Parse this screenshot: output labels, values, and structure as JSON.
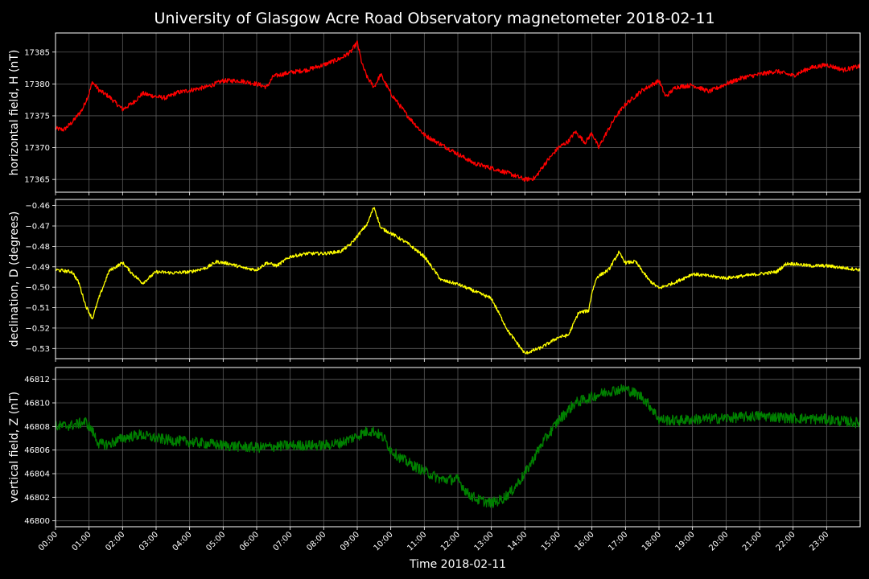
{
  "chart_data": {
    "type": "line",
    "title": "University of Glasgow Acre Road Observatory magnetometer 2018-02-11",
    "xlabel": "Time 2018-02-11",
    "x_tick_labels": [
      "00:00",
      "01:00",
      "02:00",
      "03:00",
      "04:00",
      "05:00",
      "06:00",
      "07:00",
      "08:00",
      "09:00",
      "10:00",
      "11:00",
      "12:00",
      "13:00",
      "14:00",
      "15:00",
      "16:00",
      "17:00",
      "18:00",
      "19:00",
      "20:00",
      "21:00",
      "22:00",
      "23:00"
    ],
    "xlim_hours": [
      0,
      24
    ],
    "grid": true,
    "panels": [
      {
        "ylabel": "horizontal field, H (nT)",
        "color": "#ff0000",
        "ylim": [
          17363,
          17388
        ],
        "yticks": [
          17365,
          17370,
          17375,
          17380,
          17385
        ],
        "ytick_labels": [
          "17365",
          "17370",
          "17375",
          "17380",
          "17385"
        ],
        "noise": 0.35,
        "x": [
          0,
          0.25,
          0.5,
          0.8,
          1.0,
          1.1,
          1.3,
          1.6,
          2.0,
          2.3,
          2.6,
          3.0,
          3.3,
          3.6,
          4.0,
          4.5,
          5.0,
          5.5,
          6.0,
          6.3,
          6.5,
          7.0,
          7.5,
          8.0,
          8.5,
          8.8,
          9.0,
          9.15,
          9.3,
          9.5,
          9.7,
          10.0,
          10.5,
          11.0,
          11.5,
          12.0,
          12.5,
          13.0,
          13.5,
          14.0,
          14.3,
          14.6,
          15.0,
          15.3,
          15.5,
          15.8,
          16.0,
          16.2,
          16.4,
          16.7,
          17.0,
          17.5,
          18.0,
          18.2,
          18.5,
          19.0,
          19.5,
          20.0,
          20.5,
          21.0,
          21.5,
          22.0,
          22.5,
          23.0,
          23.5,
          24.0
        ],
        "values": [
          17373,
          17372.8,
          17374,
          17376,
          17378.5,
          17380.3,
          17379,
          17378,
          17376,
          17377,
          17378.5,
          17378,
          17377.8,
          17378.6,
          17379,
          17379.5,
          17380.5,
          17380.5,
          17380,
          17379.5,
          17381.2,
          17381.8,
          17382.2,
          17383,
          17384,
          17385,
          17386.5,
          17383,
          17381,
          17379.5,
          17381.5,
          17378.5,
          17375,
          17372,
          17370.5,
          17369,
          17367.5,
          17366.8,
          17366,
          17365,
          17365.2,
          17367.5,
          17370,
          17371,
          17372.5,
          17370.8,
          17372.3,
          17370,
          17372,
          17374.8,
          17376.8,
          17379,
          17380.5,
          17378,
          17379.5,
          17379.8,
          17378.8,
          17380,
          17381,
          17381.5,
          17382,
          17381.3,
          17382.5,
          17383,
          17382.2,
          17382.8
        ]
      },
      {
        "ylabel": "declination, D (degrees)",
        "color": "#ffff00",
        "ylim": [
          -0.535,
          -0.457
        ],
        "yticks": [
          -0.53,
          -0.52,
          -0.51,
          -0.5,
          -0.49,
          -0.48,
          -0.47,
          -0.46
        ],
        "ytick_labels": [
          "−0.53",
          "−0.52",
          "−0.51",
          "−0.50",
          "−0.49",
          "−0.48",
          "−0.47",
          "−0.46"
        ],
        "noise": 0.0008,
        "x": [
          0,
          0.5,
          0.7,
          0.9,
          1.1,
          1.3,
          1.6,
          2.0,
          2.3,
          2.6,
          3.0,
          3.5,
          4.0,
          4.5,
          4.8,
          5.2,
          5.6,
          6.0,
          6.3,
          6.6,
          7.0,
          7.5,
          8.0,
          8.5,
          8.8,
          9.0,
          9.3,
          9.5,
          9.7,
          10.0,
          10.5,
          11.0,
          11.5,
          12.0,
          12.5,
          13.0,
          13.5,
          14.0,
          14.5,
          15.0,
          15.3,
          15.6,
          15.9,
          16.0,
          16.15,
          16.5,
          16.8,
          17.0,
          17.3,
          17.7,
          18.0,
          18.5,
          19.0,
          19.5,
          20.0,
          20.5,
          21.0,
          21.5,
          21.8,
          22.0,
          22.5,
          23.0,
          23.5,
          24.0
        ],
        "values": [
          -0.4915,
          -0.4925,
          -0.498,
          -0.509,
          -0.5155,
          -0.505,
          -0.492,
          -0.488,
          -0.4935,
          -0.498,
          -0.4925,
          -0.493,
          -0.4925,
          -0.4905,
          -0.4875,
          -0.4885,
          -0.4905,
          -0.4915,
          -0.488,
          -0.4895,
          -0.485,
          -0.4835,
          -0.4835,
          -0.4825,
          -0.479,
          -0.475,
          -0.469,
          -0.4605,
          -0.471,
          -0.4735,
          -0.4785,
          -0.485,
          -0.4965,
          -0.4985,
          -0.502,
          -0.5055,
          -0.5215,
          -0.5325,
          -0.5295,
          -0.5245,
          -0.5235,
          -0.5125,
          -0.5115,
          -0.5025,
          -0.495,
          -0.4915,
          -0.483,
          -0.488,
          -0.4875,
          -0.4965,
          -0.5005,
          -0.4975,
          -0.4935,
          -0.4945,
          -0.4955,
          -0.4945,
          -0.4935,
          -0.4925,
          -0.4885,
          -0.4885,
          -0.4895,
          -0.4895,
          -0.4905,
          -0.4915
        ]
      },
      {
        "ylabel": "vertical field, Z (nT)",
        "color": "#008000",
        "ylim": [
          46799.5,
          46813
        ],
        "yticks": [
          46800,
          46802,
          46804,
          46806,
          46808,
          46810,
          46812
        ],
        "ytick_labels": [
          "46800",
          "46802",
          "46804",
          "46806",
          "46808",
          "46810",
          "46812"
        ],
        "noise": 0.45,
        "x": [
          0,
          0.5,
          0.9,
          1.1,
          1.3,
          1.6,
          2.0,
          2.5,
          3.0,
          3.5,
          4.0,
          5.0,
          6.0,
          7.0,
          8.0,
          8.5,
          9.0,
          9.3,
          9.5,
          9.8,
          10.0,
          10.3,
          10.6,
          11.0,
          11.5,
          12.0,
          12.3,
          12.6,
          13.0,
          13.3,
          13.6,
          14.0,
          14.5,
          15.0,
          15.5,
          16.0,
          16.5,
          17.0,
          17.5,
          17.8,
          18.0,
          18.5,
          19.0,
          20.0,
          21.0,
          22.0,
          23.0,
          24.0
        ],
        "values": [
          46808,
          46808.1,
          46808.4,
          46807.6,
          46806.5,
          46806.5,
          46807,
          46807.3,
          46807,
          46806.8,
          46806.7,
          46806.4,
          46806.2,
          46806.4,
          46806.4,
          46806.6,
          46807.2,
          46807.6,
          46807.6,
          46807,
          46806,
          46805.3,
          46804.8,
          46804.2,
          46803.5,
          46803.5,
          46802.3,
          46801.8,
          46801.5,
          46801.8,
          46802.5,
          46804,
          46806.5,
          46808.5,
          46810,
          46810.5,
          46811,
          46811.2,
          46810.5,
          46809.5,
          46808.6,
          46808.5,
          46808.6,
          46808.7,
          46808.9,
          46808.7,
          46808.6,
          46808.3
        ]
      }
    ]
  }
}
